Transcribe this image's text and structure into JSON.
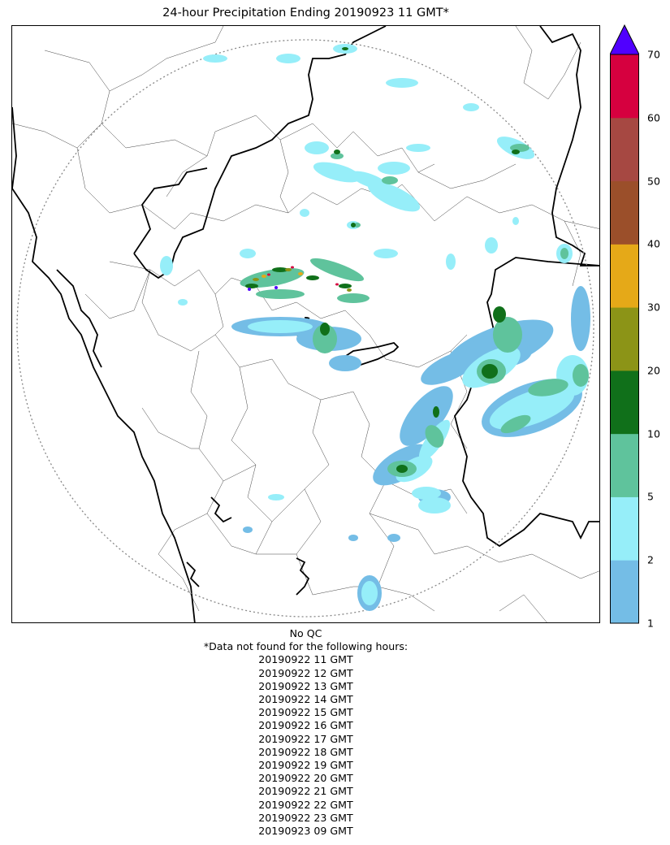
{
  "title": "24-hour Precipitation Ending 20190923 11 GMT*",
  "colorbar": {
    "ticks": [
      "1",
      "2",
      "5",
      "10",
      "20",
      "30",
      "40",
      "50",
      "60",
      "70"
    ],
    "colors": [
      "#74bde6",
      "#96eef9",
      "#5fc39c",
      "#10701a",
      "#8c9417",
      "#e5a918",
      "#9b4f2a",
      "#a64842",
      "#d6003f"
    ],
    "extend_color": "#5000ff"
  },
  "map": {
    "range_ring": "dotted",
    "radar_site_marker": "dashed-circle"
  },
  "footer": {
    "qc_note": "No QC",
    "missing_note": "*Data not found for the following hours:",
    "missing_hours": [
      "20190922 11 GMT",
      "20190922 12 GMT",
      "20190922 13 GMT",
      "20190922 14 GMT",
      "20190922 15 GMT",
      "20190922 16 GMT",
      "20190922 17 GMT",
      "20190922 18 GMT",
      "20190922 19 GMT",
      "20190922 20 GMT",
      "20190922 21 GMT",
      "20190922 22 GMT",
      "20190922 23 GMT",
      "20190923 09 GMT"
    ]
  }
}
